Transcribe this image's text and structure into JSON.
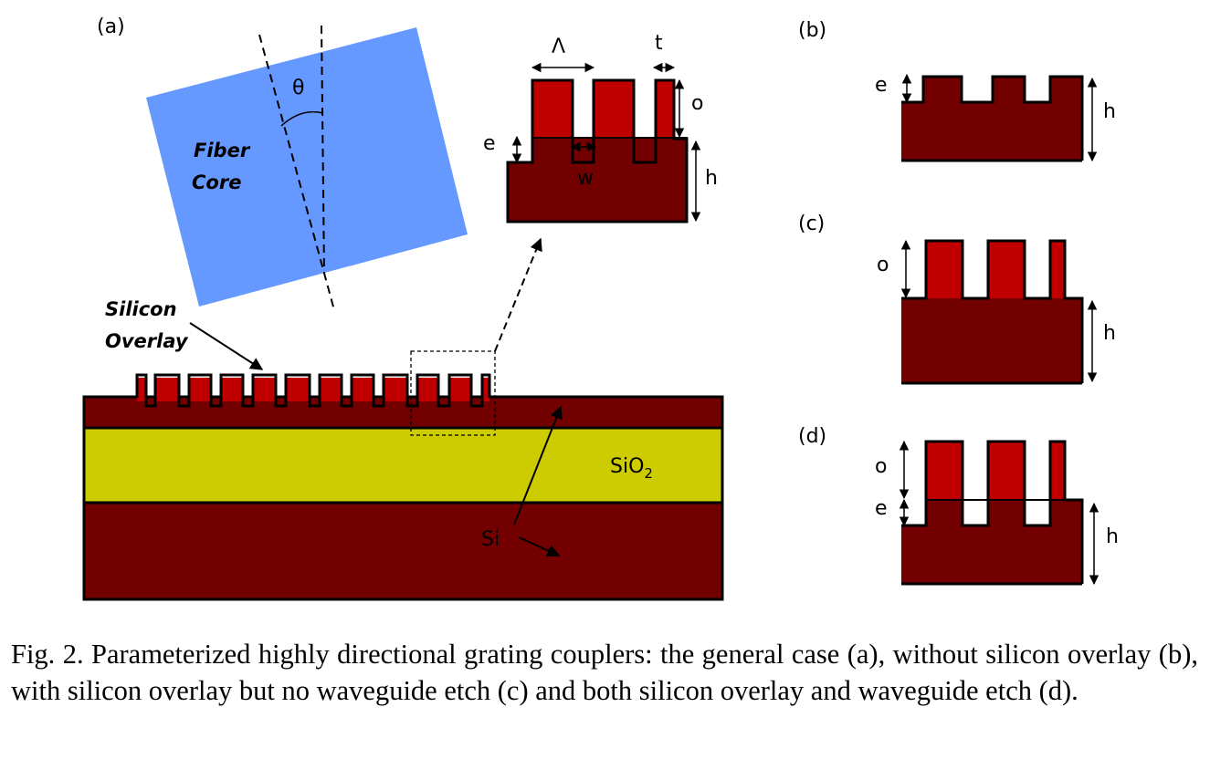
{
  "panels": {
    "a": "(a)",
    "b": "(b)",
    "c": "(c)",
    "d": "(d)"
  },
  "labels": {
    "angle": "θ",
    "fiber_line1": "Fiber",
    "fiber_line2": "Core",
    "overlay_line1": "Silicon",
    "overlay_line2": "Overlay",
    "sio2_base": "SiO",
    "sio2_sub": "2",
    "si": "Si",
    "period": "Λ",
    "t": "t",
    "o": "o",
    "e": "e",
    "w": "w",
    "h": "h"
  },
  "colors": {
    "silicon": "#720000",
    "overlay": "#c00000",
    "oxide": "#cccc00",
    "fiber": "#6699ff",
    "outline": "#000000"
  },
  "caption": "Fig. 2. Parameterized highly directional grating couplers: the general case (a), without silicon overlay (b), with silicon overlay but no waveguide etch (c) and both silicon overlay and waveguide etch (d)."
}
